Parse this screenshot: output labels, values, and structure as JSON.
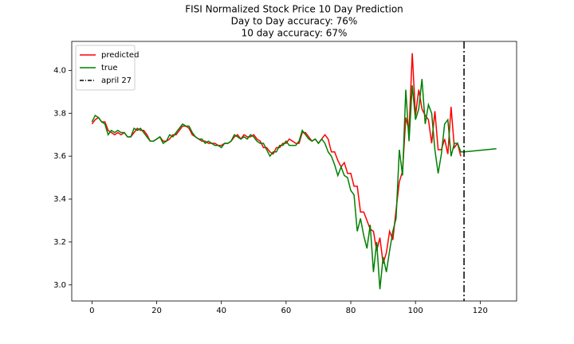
{
  "chart_data": {
    "type": "line",
    "title": "FISI Normalized Stock Price 10 Day Prediction",
    "subtitles": [
      "Day to Day accuracy: 76%",
      "10 day accuracy: 67%"
    ],
    "series": [
      {
        "name": "predicted",
        "color": "#ff0000",
        "x": [
          0,
          1,
          2,
          3,
          4,
          5,
          6,
          7,
          8,
          9,
          10,
          11,
          12,
          13,
          14,
          15,
          16,
          17,
          18,
          19,
          20,
          21,
          22,
          23,
          24,
          25,
          26,
          27,
          28,
          29,
          30,
          31,
          32,
          33,
          34,
          35,
          36,
          37,
          38,
          39,
          40,
          41,
          42,
          43,
          44,
          45,
          46,
          47,
          48,
          49,
          50,
          51,
          52,
          53,
          54,
          55,
          56,
          57,
          58,
          59,
          60,
          61,
          62,
          63,
          64,
          65,
          66,
          67,
          68,
          69,
          70,
          71,
          72,
          73,
          74,
          75,
          76,
          77,
          78,
          79,
          80,
          81,
          82,
          83,
          84,
          85,
          86,
          87,
          88,
          89,
          90,
          91,
          92,
          93,
          94,
          95,
          96,
          97,
          98,
          99,
          100,
          101,
          102,
          103,
          104,
          105,
          106,
          107,
          108,
          109,
          110,
          111,
          112,
          113,
          114
        ],
        "values": [
          3.75,
          3.77,
          3.78,
          3.76,
          3.76,
          3.72,
          3.71,
          3.7,
          3.71,
          3.7,
          3.71,
          3.69,
          3.69,
          3.71,
          3.73,
          3.72,
          3.72,
          3.7,
          3.67,
          3.67,
          3.68,
          3.69,
          3.67,
          3.67,
          3.68,
          3.7,
          3.7,
          3.72,
          3.74,
          3.74,
          3.73,
          3.7,
          3.69,
          3.68,
          3.67,
          3.67,
          3.66,
          3.66,
          3.66,
          3.65,
          3.65,
          3.66,
          3.66,
          3.67,
          3.69,
          3.7,
          3.68,
          3.7,
          3.69,
          3.69,
          3.7,
          3.68,
          3.67,
          3.64,
          3.64,
          3.62,
          3.61,
          3.64,
          3.64,
          3.66,
          3.66,
          3.68,
          3.67,
          3.66,
          3.66,
          3.71,
          3.71,
          3.69,
          3.67,
          3.68,
          3.66,
          3.68,
          3.7,
          3.68,
          3.62,
          3.62,
          3.58,
          3.55,
          3.57,
          3.52,
          3.52,
          3.46,
          3.46,
          3.34,
          3.34,
          3.3,
          3.26,
          3.25,
          3.16,
          3.22,
          3.1,
          3.15,
          3.25,
          3.21,
          3.35,
          3.48,
          3.53,
          3.78,
          3.72,
          4.08,
          3.79,
          3.91,
          3.82,
          3.79,
          3.77,
          3.66,
          3.81,
          3.63,
          3.63,
          3.68,
          3.61,
          3.83,
          3.64,
          3.66,
          3.6
        ]
      },
      {
        "name": "true",
        "color": "#008000",
        "x": [
          0,
          1,
          2,
          3,
          4,
          5,
          6,
          7,
          8,
          9,
          10,
          11,
          12,
          13,
          14,
          15,
          16,
          17,
          18,
          19,
          20,
          21,
          22,
          23,
          24,
          25,
          26,
          27,
          28,
          29,
          30,
          31,
          32,
          33,
          34,
          35,
          36,
          37,
          38,
          39,
          40,
          41,
          42,
          43,
          44,
          45,
          46,
          47,
          48,
          49,
          50,
          51,
          52,
          53,
          54,
          55,
          56,
          57,
          58,
          59,
          60,
          61,
          62,
          63,
          64,
          65,
          66,
          67,
          68,
          69,
          70,
          71,
          72,
          73,
          74,
          75,
          76,
          77,
          78,
          79,
          80,
          81,
          82,
          83,
          84,
          85,
          86,
          87,
          88,
          89,
          90,
          91,
          92,
          93,
          94,
          95,
          96,
          97,
          98,
          99,
          100,
          101,
          102,
          103,
          104,
          105,
          106,
          107,
          108,
          109,
          110,
          111,
          112,
          113,
          114,
          115,
          125
        ],
        "values": [
          3.76,
          3.79,
          3.78,
          3.76,
          3.75,
          3.7,
          3.72,
          3.71,
          3.72,
          3.71,
          3.71,
          3.69,
          3.69,
          3.73,
          3.72,
          3.73,
          3.71,
          3.69,
          3.67,
          3.67,
          3.68,
          3.69,
          3.66,
          3.67,
          3.7,
          3.69,
          3.71,
          3.73,
          3.75,
          3.74,
          3.74,
          3.71,
          3.69,
          3.68,
          3.68,
          3.66,
          3.67,
          3.66,
          3.65,
          3.65,
          3.64,
          3.66,
          3.66,
          3.67,
          3.7,
          3.69,
          3.68,
          3.69,
          3.68,
          3.7,
          3.69,
          3.67,
          3.66,
          3.66,
          3.63,
          3.6,
          3.62,
          3.62,
          3.65,
          3.65,
          3.67,
          3.65,
          3.65,
          3.65,
          3.67,
          3.72,
          3.7,
          3.68,
          3.67,
          3.68,
          3.66,
          3.68,
          3.66,
          3.62,
          3.6,
          3.56,
          3.51,
          3.55,
          3.51,
          3.5,
          3.44,
          3.42,
          3.25,
          3.31,
          3.23,
          3.17,
          3.28,
          3.06,
          3.2,
          2.98,
          3.13,
          3.06,
          3.16,
          3.25,
          3.31,
          3.63,
          3.51,
          3.91,
          3.67,
          3.93,
          3.77,
          3.82,
          3.96,
          3.75,
          3.84,
          3.8,
          3.63,
          3.52,
          3.61,
          3.75,
          3.77,
          3.6,
          3.66,
          3.66,
          3.62,
          3.62,
          3.635
        ]
      }
    ],
    "vlines": [
      {
        "name": "april 27",
        "x": 115,
        "color": "#000000"
      }
    ],
    "xlim": [
      -6.25,
      131.25
    ],
    "xticks": [
      0,
      20,
      40,
      60,
      80,
      100,
      120
    ],
    "ylim": [
      2.925,
      4.135
    ],
    "yticks": [
      {
        "value": 3.0,
        "label": "3.0"
      },
      {
        "value": 3.2,
        "label": "3.2"
      },
      {
        "value": 3.4,
        "label": "3.4"
      },
      {
        "value": 3.6,
        "label": "3.6"
      },
      {
        "value": 3.8,
        "label": "3.8"
      },
      {
        "value": 4.0,
        "label": "4.0"
      }
    ],
    "legend": "upper left"
  }
}
